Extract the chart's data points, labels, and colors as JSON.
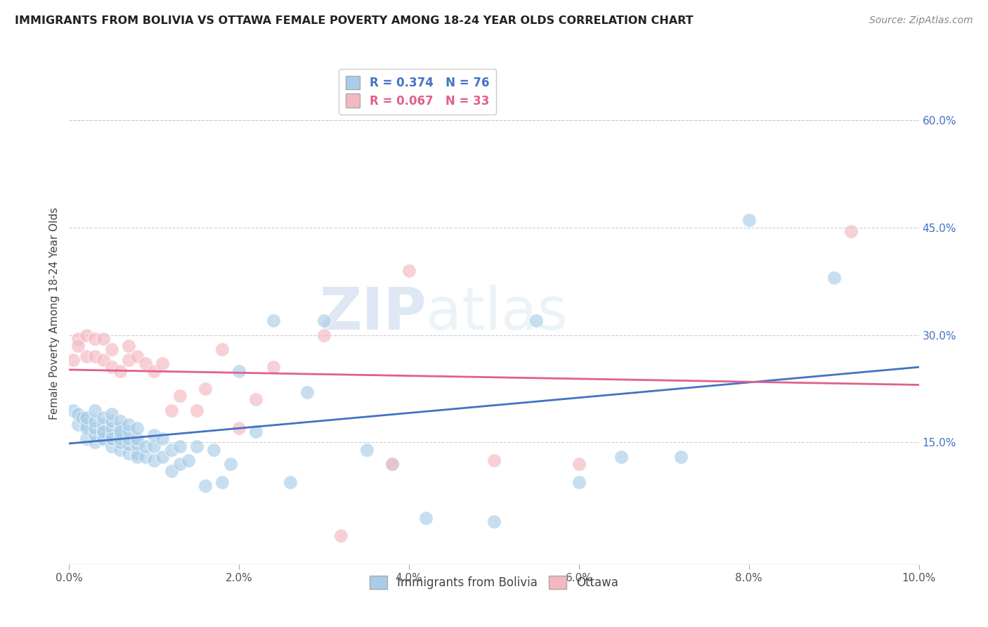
{
  "title": "IMMIGRANTS FROM BOLIVIA VS OTTAWA FEMALE POVERTY AMONG 18-24 YEAR OLDS CORRELATION CHART",
  "source": "Source: ZipAtlas.com",
  "ylabel": "Female Poverty Among 18-24 Year Olds",
  "legend_label1": "Immigrants from Bolivia",
  "legend_label2": "Ottawa",
  "r1": 0.374,
  "n1": 76,
  "r2": 0.067,
  "n2": 33,
  "color1": "#a8cde8",
  "color2": "#f4b8c1",
  "line_color1": "#4472c4",
  "line_color2": "#e06090",
  "xlim": [
    0.0,
    0.1
  ],
  "ylim": [
    -0.02,
    0.68
  ],
  "xticks": [
    0.0,
    0.02,
    0.04,
    0.06,
    0.08,
    0.1
  ],
  "yticks_right": [
    0.15,
    0.3,
    0.45,
    0.6
  ],
  "background_color": "#ffffff",
  "watermark_zip": "ZIP",
  "watermark_atlas": "atlas",
  "blue_x": [
    0.0005,
    0.001,
    0.001,
    0.0015,
    0.002,
    0.002,
    0.002,
    0.002,
    0.003,
    0.003,
    0.003,
    0.003,
    0.003,
    0.004,
    0.004,
    0.004,
    0.004,
    0.004,
    0.004,
    0.005,
    0.005,
    0.005,
    0.005,
    0.005,
    0.005,
    0.005,
    0.006,
    0.006,
    0.006,
    0.006,
    0.006,
    0.006,
    0.006,
    0.007,
    0.007,
    0.007,
    0.007,
    0.007,
    0.008,
    0.008,
    0.008,
    0.008,
    0.008,
    0.009,
    0.009,
    0.01,
    0.01,
    0.01,
    0.011,
    0.011,
    0.012,
    0.012,
    0.013,
    0.013,
    0.014,
    0.015,
    0.016,
    0.017,
    0.018,
    0.019,
    0.02,
    0.022,
    0.024,
    0.026,
    0.028,
    0.03,
    0.035,
    0.038,
    0.042,
    0.05,
    0.055,
    0.06,
    0.065,
    0.072,
    0.08,
    0.09
  ],
  "blue_y": [
    0.195,
    0.175,
    0.19,
    0.185,
    0.175,
    0.155,
    0.17,
    0.185,
    0.15,
    0.16,
    0.17,
    0.18,
    0.195,
    0.155,
    0.165,
    0.175,
    0.185,
    0.155,
    0.165,
    0.145,
    0.155,
    0.16,
    0.17,
    0.18,
    0.155,
    0.19,
    0.14,
    0.15,
    0.16,
    0.17,
    0.18,
    0.155,
    0.165,
    0.135,
    0.148,
    0.155,
    0.165,
    0.175,
    0.135,
    0.148,
    0.155,
    0.13,
    0.17,
    0.13,
    0.145,
    0.125,
    0.145,
    0.16,
    0.13,
    0.155,
    0.11,
    0.14,
    0.12,
    0.145,
    0.125,
    0.145,
    0.09,
    0.14,
    0.095,
    0.12,
    0.25,
    0.165,
    0.32,
    0.095,
    0.22,
    0.32,
    0.14,
    0.12,
    0.045,
    0.04,
    0.32,
    0.095,
    0.13,
    0.13,
    0.46,
    0.38
  ],
  "pink_x": [
    0.0005,
    0.001,
    0.001,
    0.002,
    0.002,
    0.003,
    0.003,
    0.004,
    0.004,
    0.005,
    0.005,
    0.006,
    0.007,
    0.007,
    0.008,
    0.009,
    0.01,
    0.011,
    0.012,
    0.013,
    0.015,
    0.016,
    0.018,
    0.02,
    0.022,
    0.024,
    0.03,
    0.032,
    0.038,
    0.04,
    0.05,
    0.06,
    0.092
  ],
  "pink_y": [
    0.265,
    0.295,
    0.285,
    0.3,
    0.27,
    0.27,
    0.295,
    0.265,
    0.295,
    0.255,
    0.28,
    0.25,
    0.265,
    0.285,
    0.27,
    0.26,
    0.25,
    0.26,
    0.195,
    0.215,
    0.195,
    0.225,
    0.28,
    0.17,
    0.21,
    0.255,
    0.3,
    0.02,
    0.12,
    0.39,
    0.125,
    0.12,
    0.445
  ]
}
